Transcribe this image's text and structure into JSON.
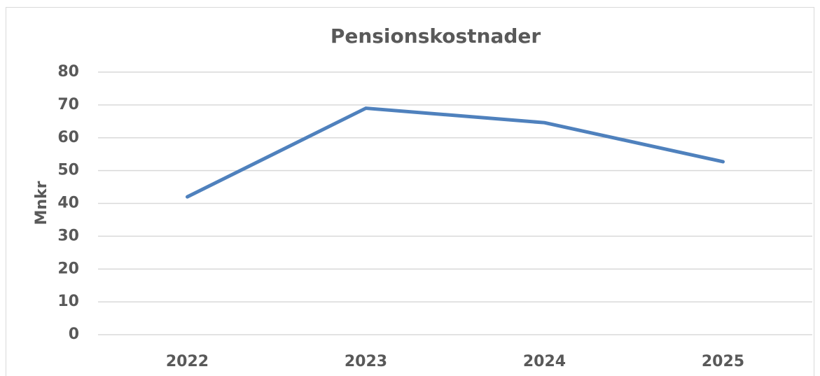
{
  "chart_data": {
    "type": "line",
    "title": "Pensionskostnader",
    "y_label": "Mnkr",
    "categories": [
      "2022",
      "2023",
      "2024",
      "2025"
    ],
    "series": [
      {
        "name": "Pensionskostnader",
        "color": "#4f81bd",
        "values": [
          42,
          69,
          64.6,
          52.7
        ]
      }
    ],
    "ylim": [
      0,
      80
    ],
    "yticks": [
      0,
      10,
      20,
      30,
      40,
      50,
      60,
      70,
      80
    ],
    "grid": true
  }
}
